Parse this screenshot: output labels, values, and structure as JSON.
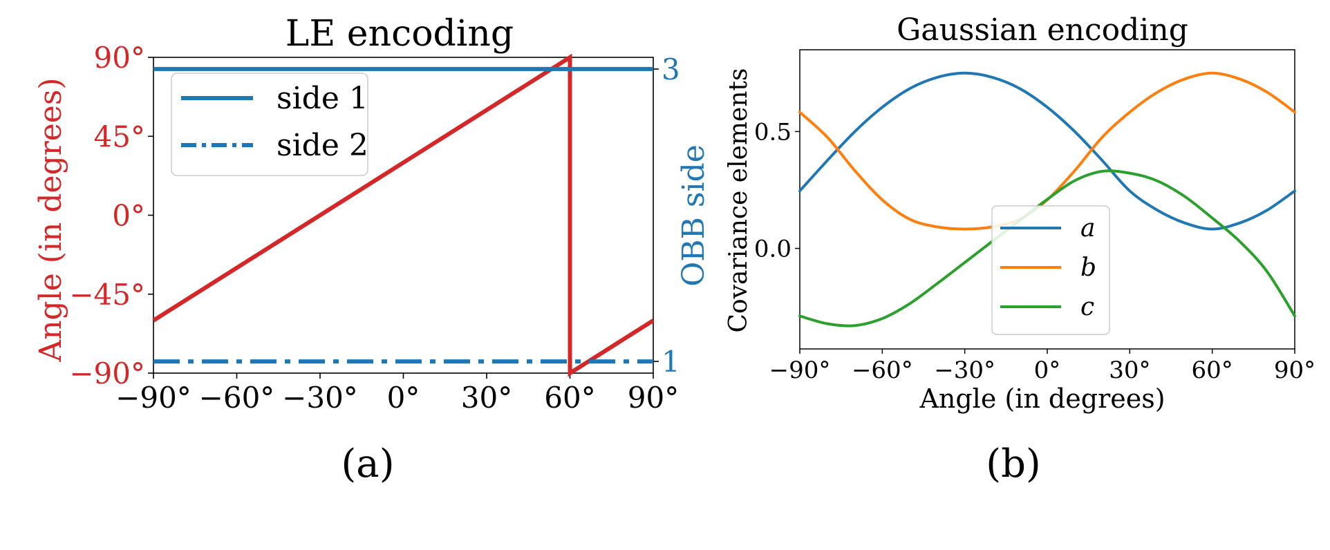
{
  "charts": [
    {
      "panel_label": "(a)",
      "chart_data": {
        "type": "line",
        "title": "LE encoding",
        "xlabel": "",
        "ylabel": "Angle (in degrees)",
        "y2label": "OBB side",
        "xlim": [
          -90,
          90
        ],
        "ylim": [
          -90,
          90
        ],
        "y2lim": [
          0.92,
          3.08
        ],
        "xticks": [
          -90,
          -60,
          -30,
          0,
          30,
          60,
          90
        ],
        "xtick_labels": [
          "−90°",
          "−60°",
          "−30°",
          "0°",
          "30°",
          "60°",
          "90°"
        ],
        "yticks": [
          90,
          45,
          0,
          -45,
          -90
        ],
        "ytick_labels": [
          "90°",
          "45°",
          "0°",
          "−45°",
          "−90°"
        ],
        "y2ticks": [
          3,
          1
        ],
        "y2tick_labels": [
          "3",
          "1"
        ],
        "grid": false,
        "legend": "upper-left",
        "series": [
          {
            "name": "",
            "axis": "left",
            "color": "#d62728",
            "style": "solid",
            "x": [
              -90,
              60,
              60,
              90
            ],
            "y": [
              -60,
              90,
              -90,
              -60
            ]
          },
          {
            "name": "side 1",
            "axis": "right",
            "color": "#1f77b4",
            "style": "solid",
            "x": [
              -90,
              90
            ],
            "y": [
              3,
              3
            ]
          },
          {
            "name": "side 2",
            "axis": "right",
            "color": "#1f77b4",
            "style": "dashdot",
            "x": [
              -90,
              90
            ],
            "y": [
              1,
              1
            ]
          }
        ]
      }
    },
    {
      "panel_label": "(b)",
      "chart_data": {
        "type": "line",
        "title": "Gaussian encoding",
        "xlabel": "Angle (in degrees)",
        "ylabel": "Covariance elements",
        "xlim": [
          -90,
          90
        ],
        "ylim": [
          -0.43,
          0.85
        ],
        "xticks": [
          -90,
          -60,
          -30,
          0,
          30,
          60,
          90
        ],
        "xtick_labels": [
          "−90°",
          "−60°",
          "−30°",
          "0°",
          "30°",
          "60°",
          "90°"
        ],
        "yticks": [
          0.5,
          0.0
        ],
        "ytick_labels": [
          "0.5",
          "0.0"
        ],
        "grid": false,
        "legend": "lower-center",
        "series": [
          {
            "name": "a",
            "color": "#1f77b4",
            "x": [
              -90,
              -80,
              -70,
              -60,
              -50,
              -40,
              -30,
              -20,
              -10,
              0,
              10,
              20,
              30,
              40,
              50,
              60,
              70,
              80,
              90
            ],
            "y": [
              0.246,
              0.376,
              0.5,
              0.604,
              0.684,
              0.732,
              0.75,
              0.732,
              0.684,
              0.604,
              0.5,
              0.376,
              0.246,
              0.164,
              0.109,
              0.083,
              0.109,
              0.164,
              0.246
            ]
          },
          {
            "name": "b",
            "color": "#ff7f0e",
            "x": [
              -90,
              -80,
              -70,
              -60,
              -50,
              -40,
              -30,
              -20,
              -10,
              0,
              10,
              20,
              30,
              40,
              50,
              60,
              70,
              80,
              90
            ],
            "y": [
              0.583,
              0.476,
              0.333,
              0.208,
              0.125,
              0.092,
              0.083,
              0.092,
              0.125,
              0.208,
              0.333,
              0.476,
              0.583,
              0.668,
              0.725,
              0.75,
              0.725,
              0.668,
              0.583
            ]
          },
          {
            "name": "c",
            "color": "#2ca02c",
            "x": [
              -90,
              -80,
              -70,
              -60,
              -50,
              -40,
              -30,
              -20,
              -10,
              0,
              10,
              20,
              30,
              40,
              50,
              60,
              70,
              80,
              90
            ],
            "y": [
              -0.289,
              -0.322,
              -0.33,
              -0.3,
              -0.236,
              -0.15,
              -0.06,
              0.03,
              0.12,
              0.21,
              0.29,
              0.33,
              0.322,
              0.289,
              0.222,
              0.13,
              0.03,
              -0.1,
              -0.289
            ]
          }
        ]
      }
    }
  ]
}
